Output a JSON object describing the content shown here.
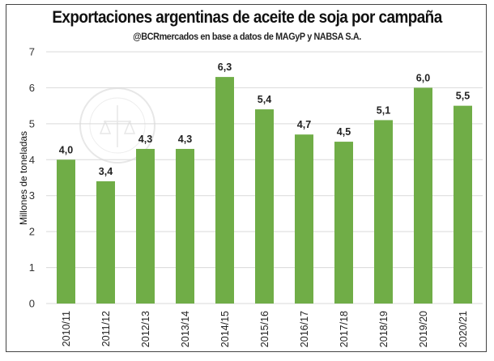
{
  "chart_data": {
    "type": "bar",
    "title": "Exportaciones argentinas de aceite de soja por campaña",
    "subtitle": "@BCRmercados  en base a datos de MAGyP y NABSA S.A.",
    "xlabel": "",
    "ylabel": "Millones de toneladas",
    "ylim": [
      0,
      7
    ],
    "yticks": [
      0,
      1,
      2,
      3,
      4,
      5,
      6,
      7
    ],
    "grid": true,
    "categories": [
      "2010/11",
      "2011/12",
      "2012/13",
      "2013/14",
      "2014/15",
      "2015/16",
      "2016/17",
      "2017/18",
      "2018/19",
      "2019/20",
      "2020/21"
    ],
    "values": [
      4.0,
      3.4,
      4.3,
      4.3,
      6.3,
      5.4,
      4.7,
      4.5,
      5.1,
      6.0,
      5.5
    ],
    "data_labels": [
      "4,0",
      "3,4",
      "4,3",
      "4,3",
      "6,3",
      "5,4",
      "4,7",
      "4,5",
      "5,1",
      "6,0",
      "5,5"
    ],
    "bar_color": "#70ad47",
    "watermark": "BOLSA DE COMERCIO DE ROSARIO"
  }
}
